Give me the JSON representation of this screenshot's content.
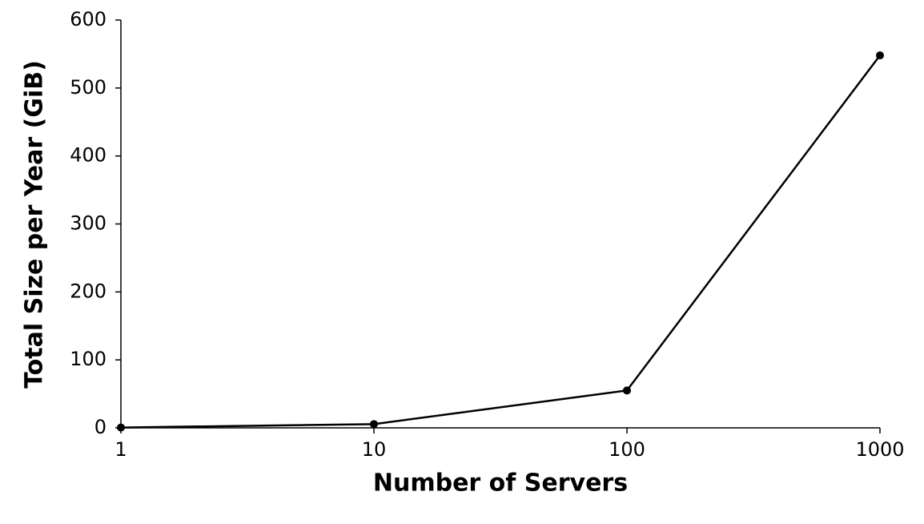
{
  "chart_data": {
    "type": "line",
    "x_label": "Number of Servers",
    "y_label": "Total Size per Year (GiB)",
    "x": [
      1,
      10,
      100,
      1000
    ],
    "values": [
      0.5,
      5.5,
      55,
      548
    ],
    "color": "#000000",
    "x_scale": "log",
    "xlim": [
      1,
      1000
    ],
    "xticks": [
      1,
      10,
      100,
      1000
    ],
    "ylim": [
      0,
      600
    ],
    "yticks": [
      0,
      100,
      200,
      300,
      400,
      500,
      600
    ],
    "grid": false
  }
}
